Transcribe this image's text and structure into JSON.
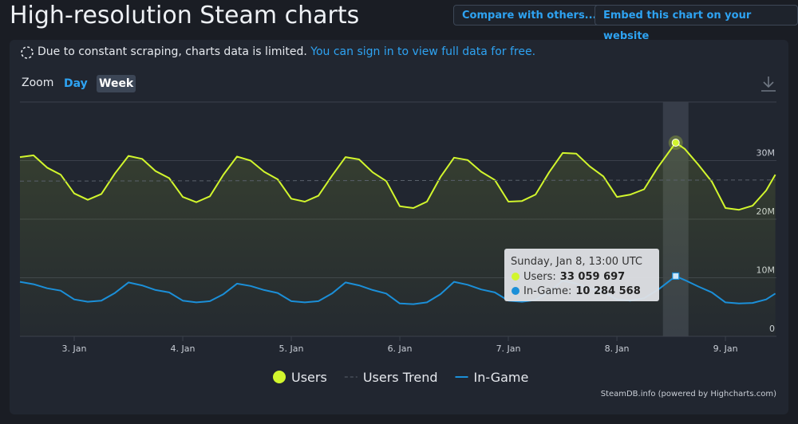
{
  "header": {
    "title": "High-resolution Steam charts",
    "buttons": [
      "Compare with others...",
      "Embed this chart on your website"
    ]
  },
  "notice": {
    "text": "Due to constant scraping, charts data is limited.",
    "link": "You can sign in to view full data for free."
  },
  "zoom": {
    "label": "Zoom",
    "options": [
      "Day",
      "Week"
    ]
  },
  "chart_data": {
    "type": "line",
    "x": [
      2.5,
      2.625,
      2.75,
      2.875,
      3,
      3.125,
      3.25,
      3.375,
      3.5,
      3.625,
      3.75,
      3.875,
      4,
      4.125,
      4.25,
      4.375,
      4.5,
      4.625,
      4.75,
      4.875,
      5,
      5.125,
      5.25,
      5.375,
      5.5,
      5.625,
      5.75,
      5.875,
      6,
      6.125,
      6.25,
      6.375,
      6.5,
      6.625,
      6.75,
      6.875,
      7,
      7.125,
      7.25,
      7.375,
      7.5,
      7.625,
      7.75,
      7.875,
      8,
      8.125,
      8.25,
      8.375,
      8.5417,
      8.625,
      8.75,
      8.875,
      9,
      9.125,
      9.25,
      9.375,
      9.46
    ],
    "series": [
      {
        "name": "Users",
        "color": "#d2f62d",
        "values": [
          30600000,
          30900000,
          28800000,
          27600000,
          24400000,
          23300000,
          24300000,
          27800000,
          30800000,
          30300000,
          28200000,
          27000000,
          23800000,
          22900000,
          23900000,
          27600000,
          30700000,
          30000000,
          28100000,
          26800000,
          23500000,
          23000000,
          24000000,
          27400000,
          30600000,
          30200000,
          28000000,
          26500000,
          22200000,
          21900000,
          23000000,
          27200000,
          30500000,
          30100000,
          28100000,
          26700000,
          23000000,
          23100000,
          24200000,
          28000000,
          31300000,
          31200000,
          29000000,
          27300000,
          23800000,
          24200000,
          25100000,
          28800000,
          33059697,
          32000000,
          29300000,
          26400000,
          21900000,
          21600000,
          22300000,
          24900000,
          27600000
        ]
      },
      {
        "name": "Users Trend",
        "color": "#59606b",
        "dashed": true,
        "x": [
          2.5,
          9.46
        ],
        "values": [
          26500000,
          26700000
        ]
      },
      {
        "name": "In-Game",
        "color": "#1b8fd8",
        "values": [
          9300000,
          8900000,
          8200000,
          7800000,
          6300000,
          5900000,
          6100000,
          7400000,
          9200000,
          8700000,
          7900000,
          7500000,
          6100000,
          5800000,
          6000000,
          7200000,
          9000000,
          8600000,
          7900000,
          7400000,
          6000000,
          5800000,
          6000000,
          7300000,
          9200000,
          8700000,
          7900000,
          7300000,
          5600000,
          5500000,
          5800000,
          7200000,
          9300000,
          8800000,
          8000000,
          7500000,
          6100000,
          5900000,
          6200000,
          7600000,
          9500000,
          9000000,
          8200000,
          7600000,
          6300000,
          6100000,
          6500000,
          7900000,
          10284568,
          9600000,
          8500000,
          7500000,
          5800000,
          5600000,
          5700000,
          6300000,
          7300000
        ]
      }
    ],
    "xlim": [
      2.5,
      9.47
    ],
    "xticks": [
      {
        "value": 3,
        "label": "3. Jan"
      },
      {
        "value": 4,
        "label": "4. Jan"
      },
      {
        "value": 5,
        "label": "5. Jan"
      },
      {
        "value": 6,
        "label": "6. Jan"
      },
      {
        "value": 7,
        "label": "7. Jan"
      },
      {
        "value": 8,
        "label": "8. Jan"
      },
      {
        "value": 9,
        "label": "9. Jan"
      }
    ],
    "ylim": [
      0,
      40000000
    ],
    "yticks": [
      0,
      {
        "value": 10000000,
        "label": "10M"
      },
      {
        "value": 20000000,
        "label": "20M"
      },
      {
        "value": 30000000,
        "label": "30M"
      }
    ],
    "grid": true,
    "legend": "bottom",
    "tooltip": {
      "x": 8.5417,
      "title": "Sunday, Jan 8, 13:00 UTC",
      "items": [
        {
          "label": "Users:",
          "value": "33 059 697"
        },
        {
          "label": "In-Game:",
          "value": "10 284 568"
        }
      ]
    },
    "credits": "SteamDB.info (powered by Highcharts.com)"
  }
}
